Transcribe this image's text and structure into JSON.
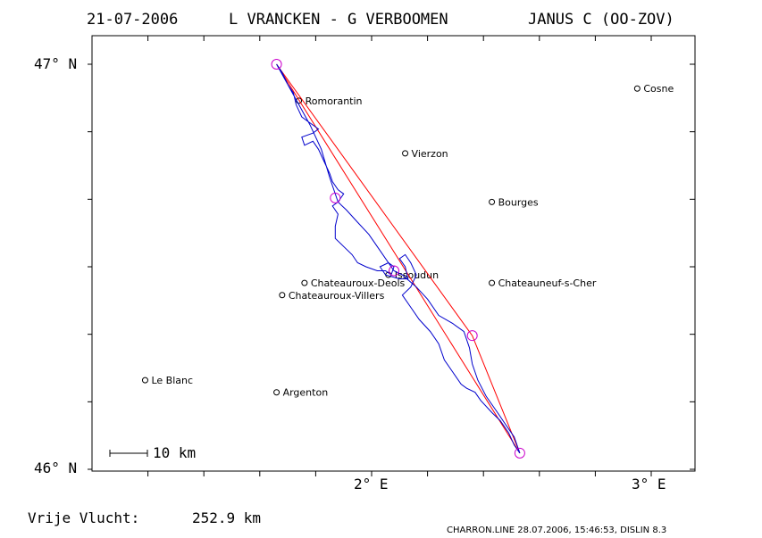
{
  "title": {
    "date": "21-07-2006",
    "pilots": "L VRANCKEN - G VERBOOMEN",
    "glider": "JANUS C (OO-ZOV)"
  },
  "axes": {
    "y_top_label": "47° N",
    "y_bottom_label": "46° N",
    "x_label_2": "2° E",
    "x_label_3": "3° E"
  },
  "scale_bar": {
    "label": "10 km"
  },
  "footer": {
    "flight_label": "Vrije Vlucht:",
    "flight_distance": "252.9 km",
    "software": "CHARRON.LINE 28.07.2006, 15:46:53, DISLIN 8.3"
  },
  "colors": {
    "track": "#0000cc",
    "task": "#ff0000",
    "turnpoint": "#cc00cc",
    "frame": "#000000"
  },
  "towns": [
    {
      "name": "Romorantin",
      "lon": 1.74,
      "lat": 46.91
    },
    {
      "name": "Vierzon",
      "lon": 2.12,
      "lat": 46.78
    },
    {
      "name": "Cosne",
      "lon": 2.95,
      "lat": 46.94
    },
    {
      "name": "Bourges",
      "lon": 2.43,
      "lat": 46.66
    },
    {
      "name": "Issoudun",
      "lon": 2.06,
      "lat": 46.48
    },
    {
      "name": "Chateauroux-Deols",
      "lon": 1.76,
      "lat": 46.46
    },
    {
      "name": "Chateauneuf-s-Cher",
      "lon": 2.43,
      "lat": 46.46
    },
    {
      "name": "Chateauroux-Villers",
      "lon": 1.68,
      "lat": 46.43
    },
    {
      "name": "Le Blanc",
      "lon": 1.19,
      "lat": 46.22
    },
    {
      "name": "Argenton",
      "lon": 1.66,
      "lat": 46.19
    }
  ],
  "turnpoints": [
    {
      "lon": 1.66,
      "lat": 47.0
    },
    {
      "lon": 1.87,
      "lat": 46.67
    },
    {
      "lon": 2.08,
      "lat": 46.49
    },
    {
      "lon": 2.36,
      "lat": 46.33
    },
    {
      "lon": 2.53,
      "lat": 46.04
    }
  ],
  "task_legs": [
    [
      [
        1.66,
        47.0
      ],
      [
        2.53,
        46.04
      ]
    ],
    [
      [
        1.66,
        47.0
      ],
      [
        2.36,
        46.33
      ],
      [
        2.53,
        46.04
      ]
    ]
  ],
  "track": [
    [
      1.66,
      47.0
    ],
    [
      1.68,
      46.98
    ],
    [
      1.7,
      46.95
    ],
    [
      1.72,
      46.93
    ],
    [
      1.73,
      46.9
    ],
    [
      1.75,
      46.87
    ],
    [
      1.77,
      46.86
    ],
    [
      1.79,
      46.85
    ],
    [
      1.81,
      46.84
    ],
    [
      1.79,
      46.83
    ],
    [
      1.75,
      46.82
    ],
    [
      1.76,
      46.8
    ],
    [
      1.79,
      46.81
    ],
    [
      1.81,
      46.79
    ],
    [
      1.83,
      46.76
    ],
    [
      1.85,
      46.73
    ],
    [
      1.86,
      46.71
    ],
    [
      1.88,
      46.69
    ],
    [
      1.9,
      46.68
    ],
    [
      1.88,
      46.66
    ],
    [
      1.86,
      46.65
    ],
    [
      1.88,
      46.63
    ],
    [
      1.87,
      46.6
    ],
    [
      1.87,
      46.57
    ],
    [
      1.9,
      46.55
    ],
    [
      1.93,
      46.53
    ],
    [
      1.95,
      46.51
    ],
    [
      1.98,
      46.5
    ],
    [
      2.02,
      46.49
    ],
    [
      2.05,
      46.49
    ],
    [
      2.07,
      46.48
    ],
    [
      2.08,
      46.5
    ],
    [
      2.06,
      46.51
    ],
    [
      2.03,
      46.5
    ],
    [
      2.05,
      46.48
    ],
    [
      2.1,
      46.47
    ],
    [
      2.13,
      46.47
    ],
    [
      2.12,
      46.5
    ],
    [
      2.1,
      46.52
    ],
    [
      2.12,
      46.53
    ],
    [
      2.14,
      46.51
    ],
    [
      2.16,
      46.48
    ],
    [
      2.14,
      46.45
    ],
    [
      2.11,
      46.43
    ],
    [
      2.14,
      46.4
    ],
    [
      2.17,
      46.37
    ],
    [
      2.21,
      46.34
    ],
    [
      2.24,
      46.31
    ],
    [
      2.26,
      46.27
    ],
    [
      2.29,
      46.24
    ],
    [
      2.32,
      46.21
    ],
    [
      2.34,
      46.2
    ],
    [
      2.37,
      46.19
    ],
    [
      2.39,
      46.17
    ],
    [
      2.43,
      46.14
    ],
    [
      2.46,
      46.12
    ],
    [
      2.49,
      46.09
    ],
    [
      2.51,
      46.06
    ],
    [
      2.53,
      46.04
    ],
    [
      2.51,
      46.08
    ],
    [
      2.48,
      46.11
    ],
    [
      2.45,
      46.14
    ],
    [
      2.41,
      46.18
    ],
    [
      2.38,
      46.22
    ],
    [
      2.36,
      46.26
    ],
    [
      2.35,
      46.3
    ],
    [
      2.33,
      46.34
    ],
    [
      2.29,
      46.36
    ],
    [
      2.24,
      46.38
    ],
    [
      2.2,
      46.42
    ],
    [
      2.16,
      46.45
    ],
    [
      2.11,
      46.48
    ],
    [
      2.08,
      46.49
    ],
    [
      2.03,
      46.54
    ],
    [
      1.99,
      46.58
    ],
    [
      1.95,
      46.61
    ],
    [
      1.91,
      46.64
    ],
    [
      1.88,
      46.66
    ],
    [
      1.85,
      46.72
    ],
    [
      1.82,
      46.79
    ],
    [
      1.78,
      46.85
    ],
    [
      1.74,
      46.9
    ],
    [
      1.7,
      46.95
    ],
    [
      1.66,
      47.0
    ]
  ]
}
